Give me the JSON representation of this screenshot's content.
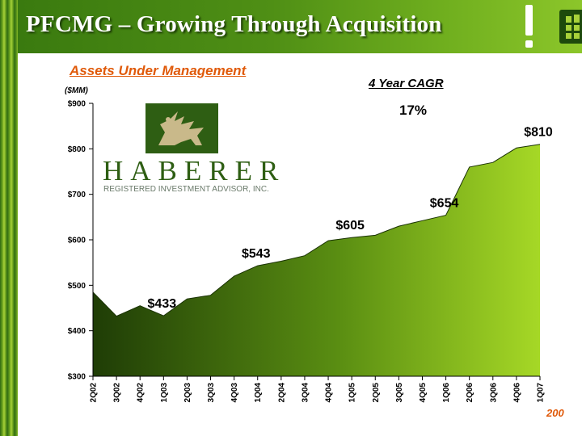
{
  "header": {
    "title": "PFCMG – Growing Through Acquisition"
  },
  "section_title": "Assets Under Management",
  "unit_label": "($MM)",
  "cagr": {
    "label": "4 Year CAGR",
    "value": "17%"
  },
  "logo": {
    "name": "HABERER",
    "tagline": "REGISTERED INVESTMENT ADVISOR, INC."
  },
  "page_number": "200",
  "colors": {
    "accent": "#e05a0a",
    "brand_green": "#3a7a0f",
    "area_light": "#9ad01f",
    "area_dark": "#1f3d06"
  },
  "chart_data": {
    "type": "area",
    "title": "Assets Under Management",
    "ylabel": "($MM)",
    "xlabel": "",
    "ylim": [
      300,
      900
    ],
    "yticks": [
      300,
      400,
      500,
      600,
      700,
      800,
      900
    ],
    "ytick_labels": [
      "$300",
      "$400",
      "$500",
      "$600",
      "$700",
      "$800",
      "$900"
    ],
    "categories": [
      "2Q02",
      "3Q02",
      "4Q02",
      "1Q03",
      "2Q03",
      "3Q03",
      "4Q03",
      "1Q04",
      "2Q04",
      "3Q04",
      "4Q04",
      "1Q05",
      "2Q05",
      "3Q05",
      "4Q05",
      "1Q06",
      "2Q06",
      "3Q06",
      "4Q06",
      "1Q07"
    ],
    "values": [
      485,
      432,
      455,
      433,
      470,
      478,
      520,
      543,
      553,
      565,
      598,
      605,
      610,
      630,
      642,
      654,
      760,
      770,
      802,
      810
    ],
    "data_labels": [
      {
        "index": 3,
        "text": "$433"
      },
      {
        "index": 7,
        "text": "$543"
      },
      {
        "index": 11,
        "text": "$605"
      },
      {
        "index": 15,
        "text": "$654"
      },
      {
        "index": 19,
        "text": "$810"
      }
    ],
    "grid": false,
    "legend": "none"
  }
}
